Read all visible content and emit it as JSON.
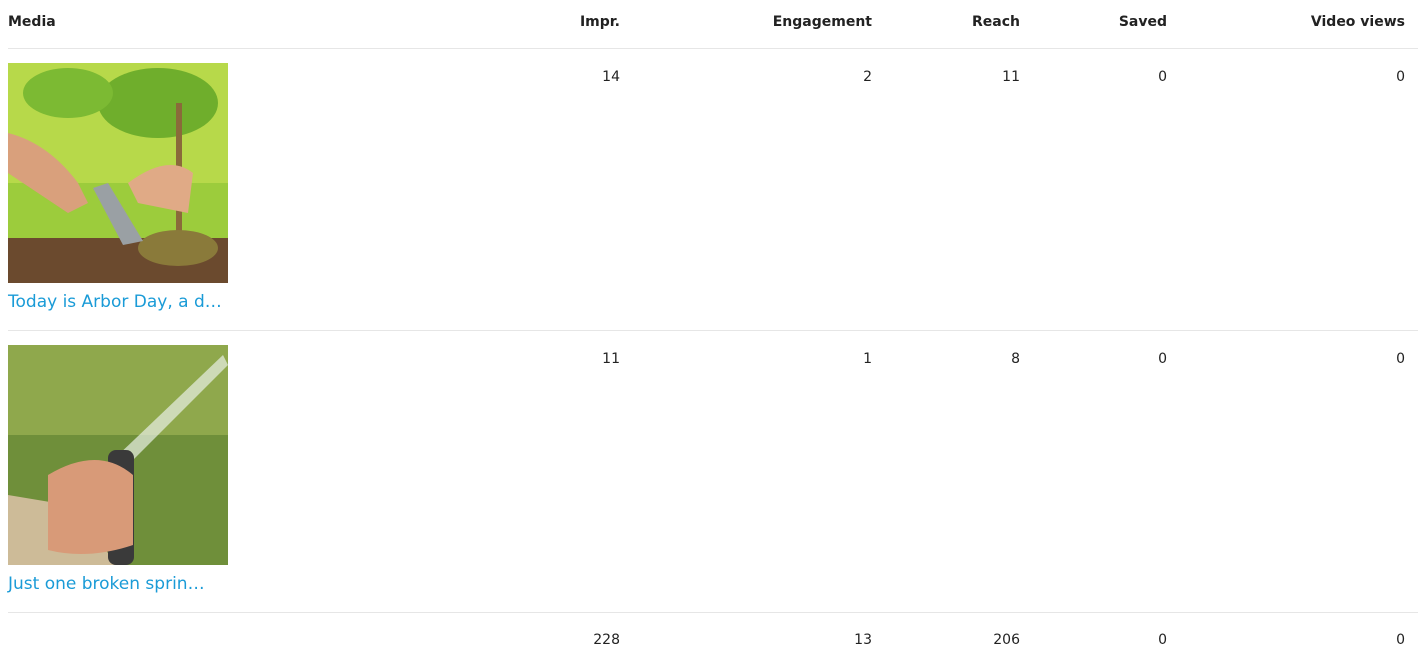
{
  "table": {
    "columns": [
      "Media",
      "Impr.",
      "Engagement",
      "Reach",
      "Saved",
      "Video views"
    ],
    "rows": [
      {
        "caption": "Today is Arbor Day, a d…",
        "values": [
          14,
          2,
          11,
          0,
          0
        ]
      },
      {
        "caption": "Just one broken sprin…",
        "values": [
          11,
          1,
          8,
          0,
          0
        ]
      }
    ],
    "totals": [
      228,
      13,
      206,
      0,
      0
    ]
  }
}
